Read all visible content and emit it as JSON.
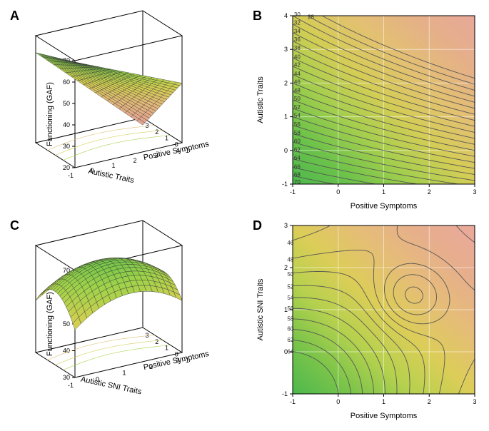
{
  "panels": {
    "A": {
      "label": "A",
      "zlabel": "Functioning (GAF)",
      "xlabel": "Autistic Traits",
      "ylabel": "Positive Symptoms",
      "zticks": [
        20,
        30,
        40,
        50,
        60,
        70
      ],
      "xticks": [
        -1,
        0,
        1,
        2,
        3,
        4
      ],
      "yticks": [
        -1,
        0,
        1,
        2,
        3
      ],
      "surface_colors": [
        "#4cb84c",
        "#9cd24a",
        "#d3cf50",
        "#e2b978",
        "#e3a590"
      ]
    },
    "B": {
      "label": "B",
      "xlabel": "Positive Symptoms",
      "ylabel": "Autistic Traits",
      "xticks": [
        -1,
        0,
        1,
        2,
        3
      ],
      "yticks": [
        -1,
        0,
        1,
        2,
        3,
        4
      ],
      "contours": [
        26,
        28,
        30,
        32,
        34,
        36,
        38,
        40,
        42,
        44,
        46,
        48,
        50,
        52,
        54,
        56,
        58,
        60,
        62,
        64,
        66,
        68,
        70
      ],
      "gradient": [
        "#4db84d",
        "#6cc24a",
        "#a3ce4d",
        "#d4cd55",
        "#e3c072",
        "#e5b088",
        "#e8a89b"
      ]
    },
    "C": {
      "label": "C",
      "zlabel": "Functioning (GAF)",
      "xlabel": "Autistic SNI Traits",
      "ylabel": "Positive Symptoms",
      "zticks": [
        30,
        40,
        50,
        60,
        70
      ],
      "xticks": [
        -1,
        0,
        1,
        2,
        3
      ],
      "yticks": [
        -1,
        0,
        1,
        2,
        3
      ],
      "surface_colors": [
        "#4cb84c",
        "#9cd24a",
        "#d3cf50",
        "#e2b978",
        "#e3a590"
      ]
    },
    "D": {
      "label": "D",
      "xlabel": "Positive Symptoms",
      "ylabel": "Autistic SNI Traits",
      "xticks": [
        -1,
        0,
        1,
        2,
        3
      ],
      "yticks": [
        -1,
        0,
        1,
        2,
        3
      ],
      "contours": [
        40,
        42,
        44,
        46,
        48,
        50,
        52,
        54,
        56,
        58,
        60,
        62,
        64
      ],
      "gradient": [
        "#4db84d",
        "#7ac44a",
        "#b6d14e",
        "#dccd58",
        "#e5bd77",
        "#e7ae8d",
        "#eaa89c"
      ]
    }
  },
  "style": {
    "axis_font_size": 11,
    "tick_font_size": 9,
    "contour_label_size": 8,
    "line_color": "#555555",
    "cube_color": "#000000",
    "gridline_color": "#ffffff88"
  }
}
